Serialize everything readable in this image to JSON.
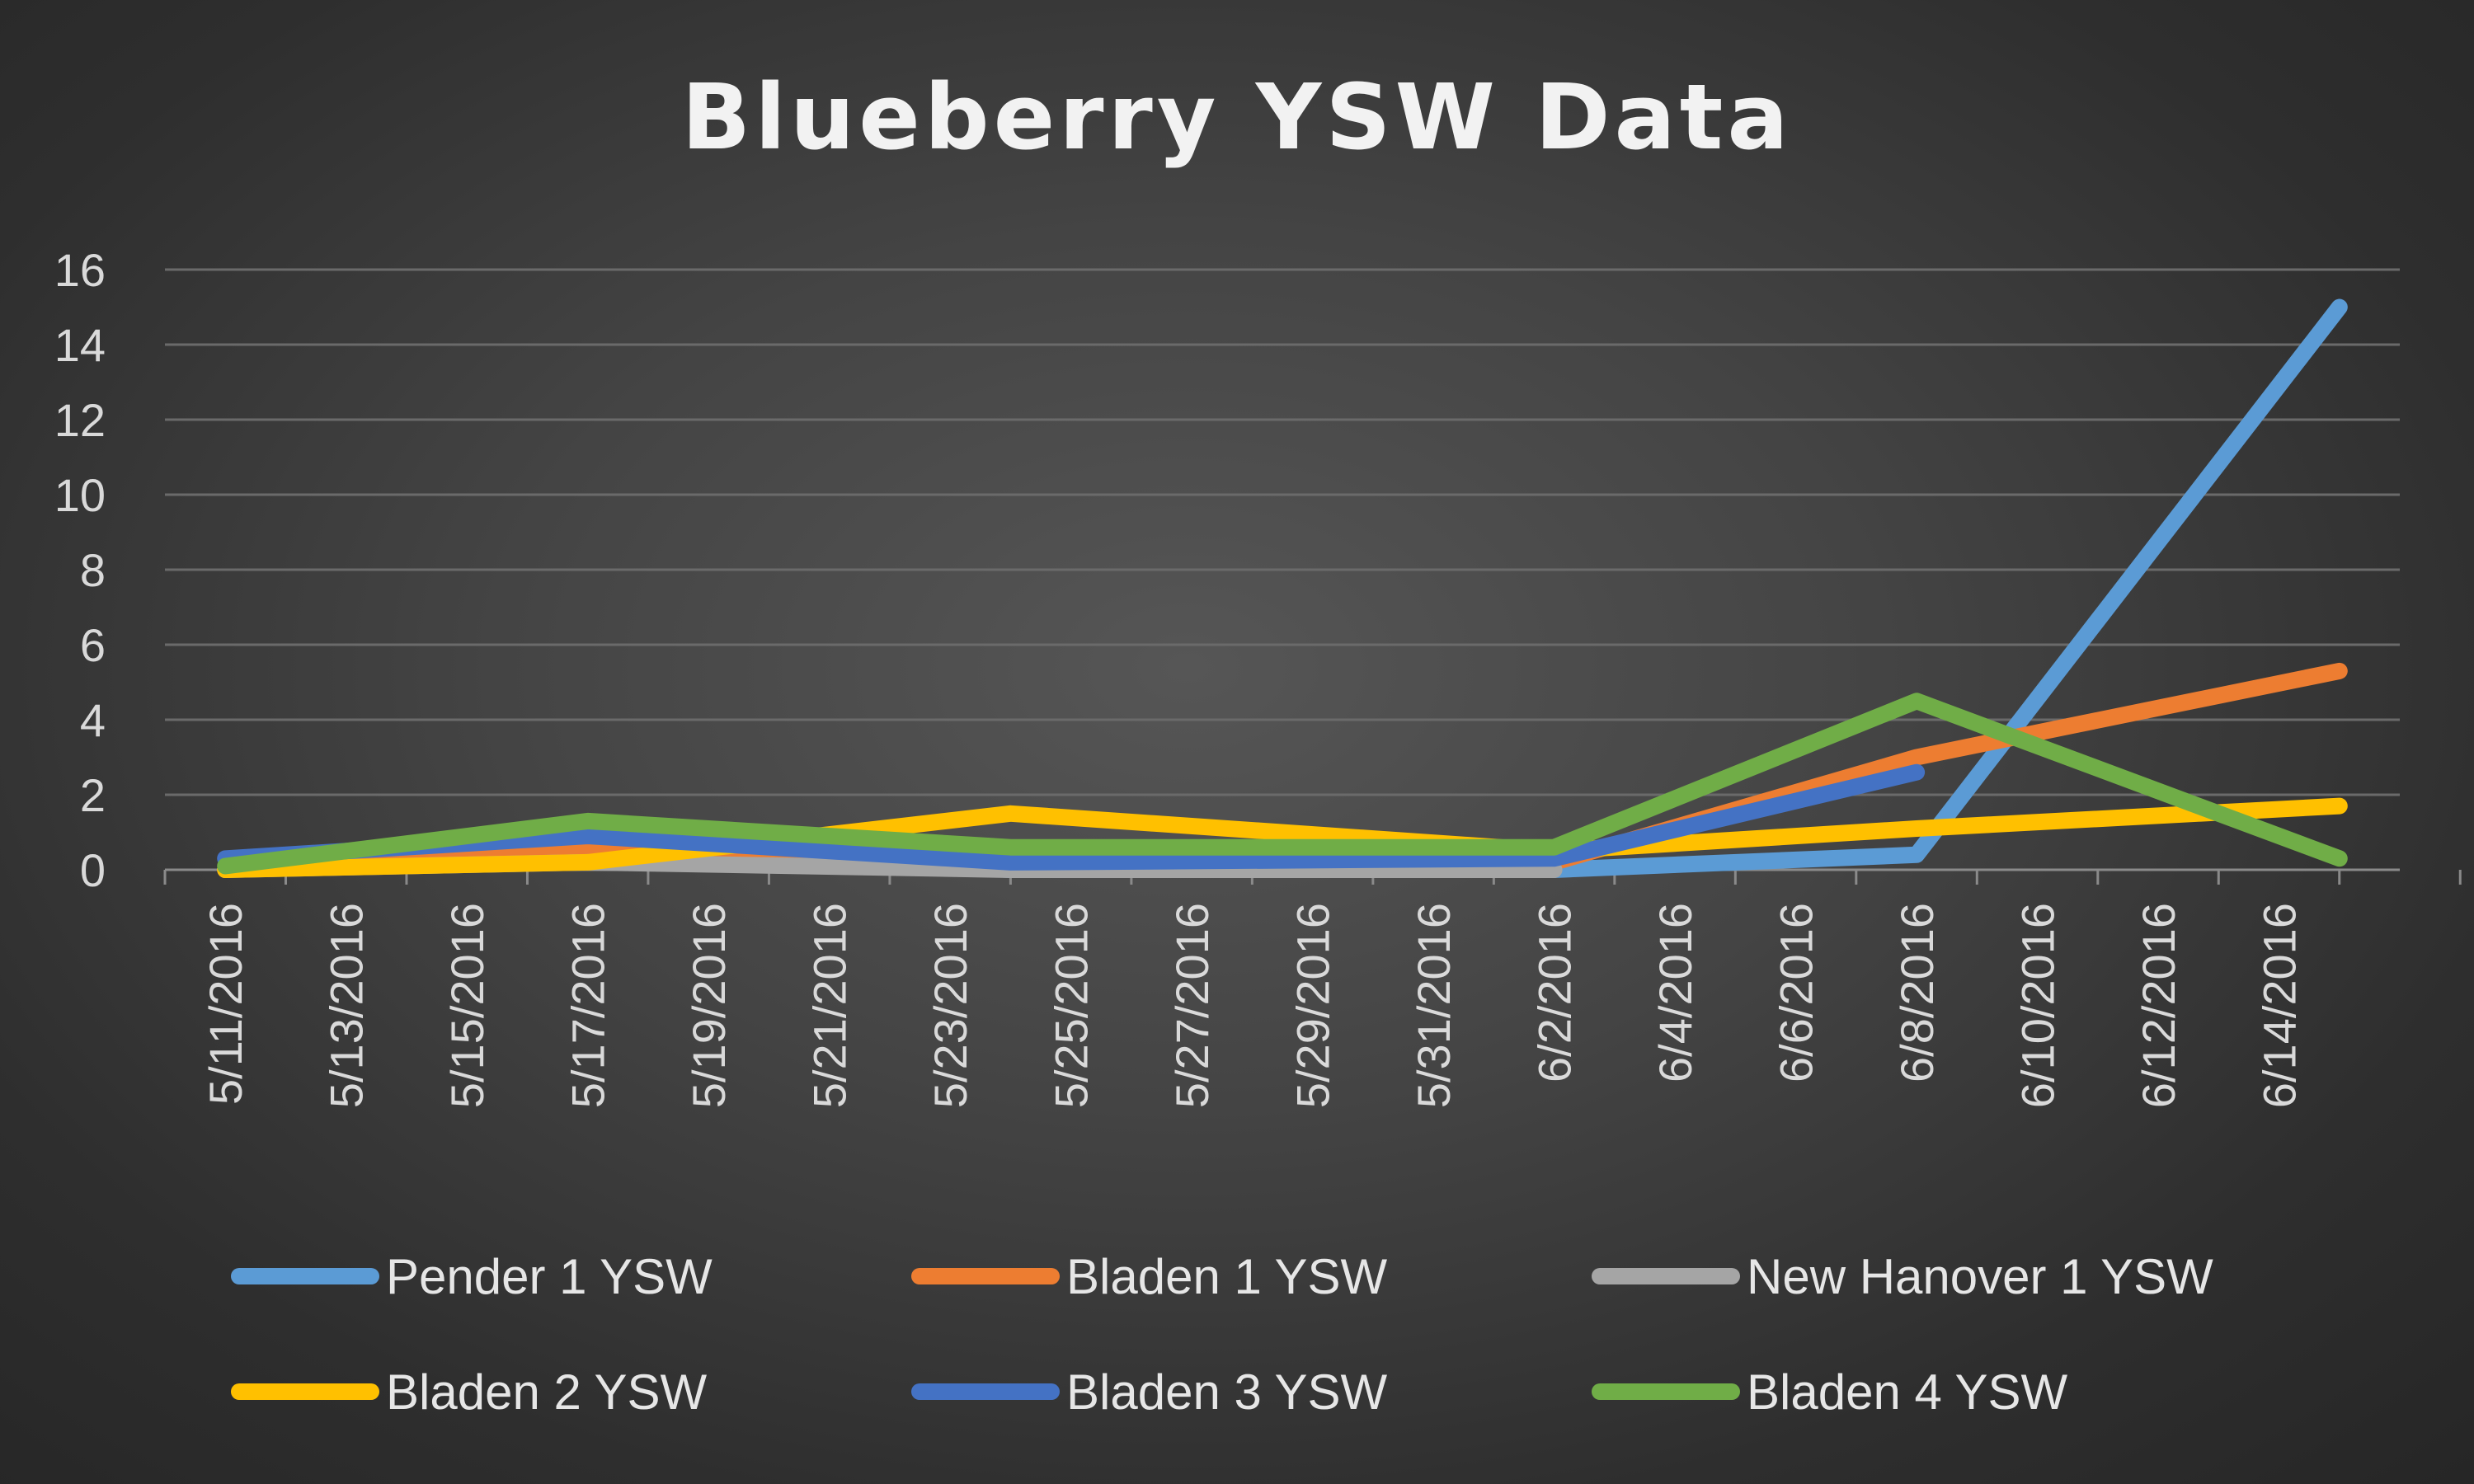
{
  "chart_data": {
    "type": "line",
    "title": "Blueberry YSW Data",
    "xlabel": "",
    "ylabel": "",
    "ylim": [
      0,
      16
    ],
    "yticks": [
      0,
      2,
      4,
      6,
      8,
      10,
      12,
      14,
      16
    ],
    "x_tick_labels": [
      "5/11/2016",
      "5/13/2016",
      "5/15/2016",
      "5/17/2016",
      "5/19/2016",
      "5/21/2016",
      "5/23/2016",
      "5/25/2016",
      "5/27/2016",
      "5/29/2016",
      "5/31/2016",
      "6/2/2016",
      "6/4/2016",
      "6/6/2016",
      "6/8/2016",
      "6/10/2016",
      "6/12/2016",
      "6/14/2016"
    ],
    "x_range": [
      "5/10/2016",
      "6/16/2016"
    ],
    "grid": true,
    "legend_position": "bottom",
    "series": [
      {
        "name": "Pender 1 YSW",
        "color": "#5b9bd5",
        "x": [
          "5/11/2016",
          "5/17/2016",
          "5/24/2016",
          "6/2/2016",
          "6/8/2016",
          "6/15/2016"
        ],
        "y": [
          0,
          0.6,
          0,
          0,
          0.4,
          15
        ]
      },
      {
        "name": "Bladen 1 YSW",
        "color": "#ed7d31",
        "x": [
          "5/11/2016",
          "5/17/2016",
          "5/24/2016",
          "6/2/2016",
          "6/8/2016",
          "6/15/2016"
        ],
        "y": [
          0,
          0.6,
          0.2,
          0.2,
          3,
          5.3
        ]
      },
      {
        "name": "New Hanover 1 YSW",
        "color": "#a5a5a5",
        "x": [
          "5/11/2016",
          "5/17/2016",
          "5/24/2016",
          "6/2/2016"
        ],
        "y": [
          0,
          0.2,
          0,
          0
        ]
      },
      {
        "name": "Bladen 2 YSW",
        "color": "#ffc000",
        "x": [
          "5/11/2016",
          "5/17/2016",
          "5/24/2016",
          "6/2/2016",
          "6/8/2016",
          "6/15/2016"
        ],
        "y": [
          0,
          0.2,
          1.5,
          0.5,
          1.1,
          1.7
        ]
      },
      {
        "name": "Bladen 3 YSW",
        "color": "#4472c4",
        "x": [
          "5/11/2016",
          "5/17/2016",
          "5/24/2016",
          "6/2/2016",
          "6/8/2016"
        ],
        "y": [
          0.3,
          0.9,
          0.2,
          0.3,
          2.6
        ]
      },
      {
        "name": "Bladen 4 YSW",
        "color": "#70ad47",
        "x": [
          "5/11/2016",
          "5/17/2016",
          "5/24/2016",
          "6/2/2016",
          "6/8/2016",
          "6/15/2016"
        ],
        "y": [
          0.1,
          1.3,
          0.6,
          0.6,
          4.5,
          0.3
        ]
      }
    ]
  }
}
